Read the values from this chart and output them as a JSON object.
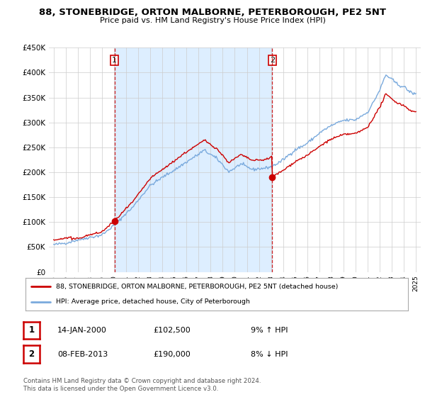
{
  "title": "88, STONEBRIDGE, ORTON MALBORNE, PETERBOROUGH, PE2 5NT",
  "subtitle": "Price paid vs. HM Land Registry's House Price Index (HPI)",
  "ylim": [
    0,
    450000
  ],
  "yticks": [
    0,
    50000,
    100000,
    150000,
    200000,
    250000,
    300000,
    350000,
    400000,
    450000
  ],
  "ytick_labels": [
    "£0",
    "£50K",
    "£100K",
    "£150K",
    "£200K",
    "£250K",
    "£300K",
    "£350K",
    "£400K",
    "£450K"
  ],
  "legend_line1": "88, STONEBRIDGE, ORTON MALBORNE, PETERBOROUGH, PE2 5NT (detached house)",
  "legend_line2": "HPI: Average price, detached house, City of Peterborough",
  "sale1_label": "1",
  "sale1_date": "14-JAN-2000",
  "sale1_price": "£102,500",
  "sale1_pct": "9% ↑ HPI",
  "sale2_label": "2",
  "sale2_date": "08-FEB-2013",
  "sale2_price": "£190,000",
  "sale2_pct": "8% ↓ HPI",
  "footer": "Contains HM Land Registry data © Crown copyright and database right 2024.\nThis data is licensed under the Open Government Licence v3.0.",
  "price_color": "#cc0000",
  "hpi_color": "#7aaadd",
  "vline_color": "#cc0000",
  "marker_color": "#cc0000",
  "background_color": "#ffffff",
  "grid_color": "#cccccc",
  "shade_color": "#ddeeff",
  "sale1_x": 2000.04,
  "sale1_y": 102500,
  "sale2_x": 2013.1,
  "sale2_y": 190000,
  "xlim_left": 1994.6,
  "xlim_right": 2025.4
}
